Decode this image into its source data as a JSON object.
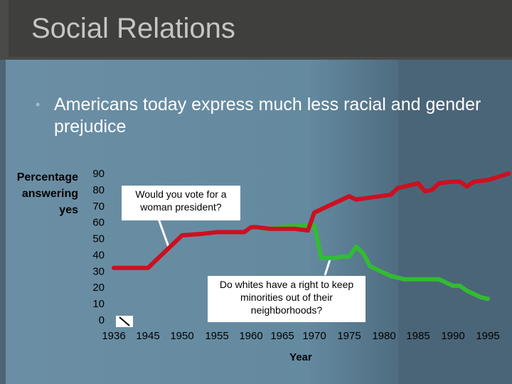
{
  "slide": {
    "title": "Social Relations",
    "bullet": "Americans today express much less racial and gender prejudice",
    "colors": {
      "title_bg": "#3f3f3d",
      "content_bg": "#648aa0",
      "red_series": "#cc1020",
      "green_series": "#33bb33"
    }
  },
  "chart_data": {
    "type": "line",
    "ylabel_lines": [
      "Percentage",
      "answering",
      "yes"
    ],
    "xlabel": "Year",
    "ylim": [
      0,
      90
    ],
    "yticks": [
      "90",
      "80",
      "70",
      "60",
      "50",
      "40",
      "30",
      "20",
      "10",
      "0"
    ],
    "xticks": [
      "1936",
      "1945",
      "1950",
      "1955",
      "1960",
      "1965",
      "1970",
      "1975",
      "1980",
      "1985",
      "1990",
      "1995"
    ],
    "annotations": [
      {
        "series": "woman_president",
        "text": "Would you vote for a woman president?"
      },
      {
        "series": "keep_minorities_out",
        "text": "Do whites have a right to keep minorities out of their neighborhoods?"
      }
    ],
    "series": [
      {
        "name": "Would you vote for a woman president?",
        "color": "#cc1020",
        "points": [
          [
            1936,
            32
          ],
          [
            1942,
            32
          ],
          [
            1945,
            32
          ],
          [
            1950,
            52
          ],
          [
            1953,
            53
          ],
          [
            1955,
            54
          ],
          [
            1959,
            54
          ],
          [
            1960,
            57
          ],
          [
            1961,
            57
          ],
          [
            1963,
            56
          ],
          [
            1967,
            56
          ],
          [
            1969,
            55
          ],
          [
            1970,
            66
          ],
          [
            1975,
            76
          ],
          [
            1976,
            74
          ],
          [
            1981,
            77
          ],
          [
            1982,
            81
          ],
          [
            1985,
            84
          ],
          [
            1986,
            79
          ],
          [
            1987,
            80
          ],
          [
            1988,
            84
          ],
          [
            1990,
            85
          ],
          [
            1991,
            85
          ],
          [
            1992,
            82
          ],
          [
            1993,
            85
          ],
          [
            1995,
            86
          ],
          [
            1998,
            90
          ]
        ]
      },
      {
        "name": "Do whites have a right to keep minorities out of their neighborhoods?",
        "color": "#33bb33",
        "points": [
          [
            1962,
            56
          ],
          [
            1967,
            58
          ],
          [
            1970,
            58
          ],
          [
            1971,
            38
          ],
          [
            1973,
            38
          ],
          [
            1974,
            39
          ],
          [
            1975,
            39
          ],
          [
            1976,
            45
          ],
          [
            1977,
            41
          ],
          [
            1978,
            33
          ],
          [
            1981,
            27
          ],
          [
            1983,
            25
          ],
          [
            1985,
            25
          ],
          [
            1987,
            25
          ],
          [
            1988,
            25
          ],
          [
            1990,
            21
          ],
          [
            1991,
            21
          ],
          [
            1992,
            18
          ],
          [
            1994,
            14
          ],
          [
            1995,
            13
          ]
        ]
      }
    ]
  }
}
